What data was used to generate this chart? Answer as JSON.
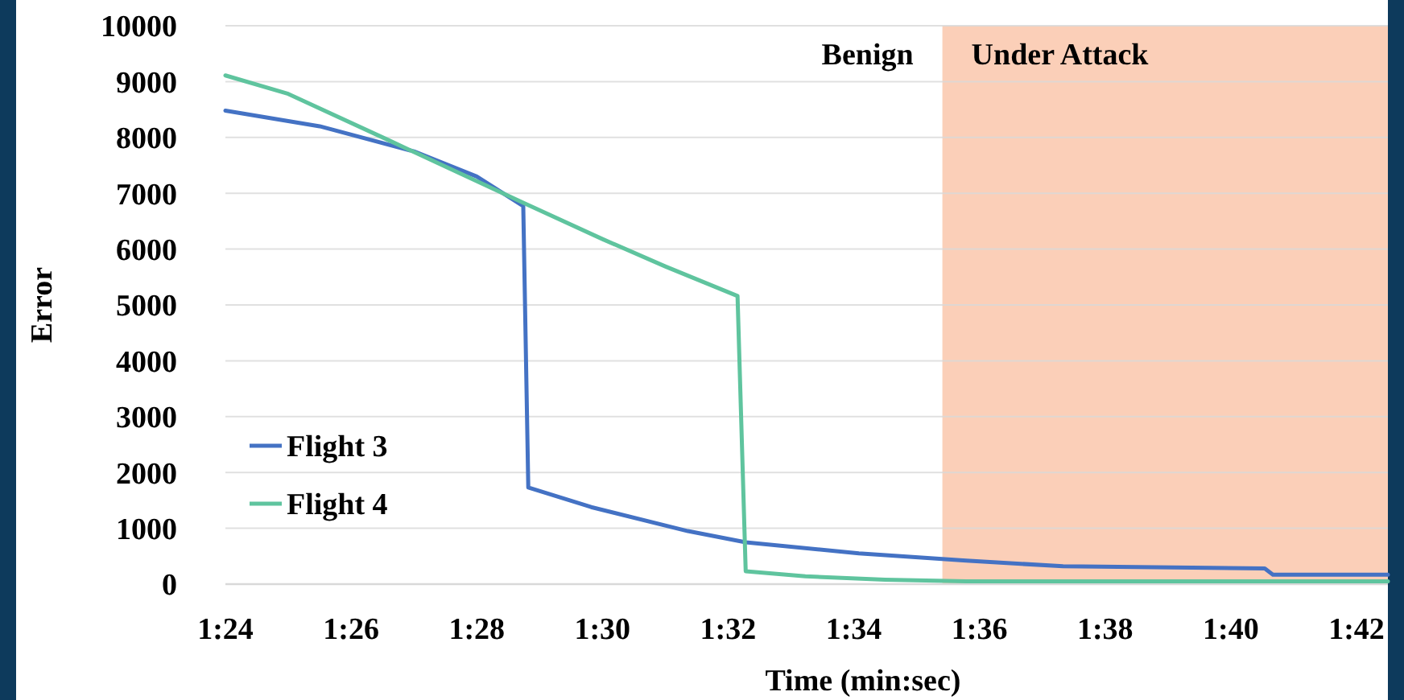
{
  "chart_data": {
    "type": "line",
    "xlabel": "Time (min:sec)",
    "ylabel": "Error",
    "xlim": [
      84,
      102.5
    ],
    "xticks": [
      {
        "value": 84,
        "label": "1:24"
      },
      {
        "value": 86,
        "label": "1:26"
      },
      {
        "value": 88,
        "label": "1:28"
      },
      {
        "value": 90,
        "label": "1:30"
      },
      {
        "value": 92,
        "label": "1:32"
      },
      {
        "value": 94,
        "label": "1:34"
      },
      {
        "value": 96,
        "label": "1:36"
      },
      {
        "value": 98,
        "label": "1:38"
      },
      {
        "value": 100,
        "label": "1:40"
      },
      {
        "value": 102,
        "label": "1:42"
      }
    ],
    "ylim": [
      0,
      10000
    ],
    "yticks": [
      0,
      1000,
      2000,
      3000,
      4000,
      5000,
      6000,
      7000,
      8000,
      9000,
      10000
    ],
    "grid": "y",
    "legend": "bottom left",
    "annotations": [
      "Benign"
    ],
    "series": [
      {
        "name": "Flight 3",
        "color": "#4472c4",
        "x": [
          84,
          85.5,
          87,
          88,
          88.74,
          88.82,
          89.82,
          91.36,
          92.28,
          94.08,
          95.79,
          97.33,
          100.54,
          100.67,
          102.5
        ],
        "values": [
          8480,
          8200,
          7750,
          7300,
          6770,
          1730,
          1380,
          950,
          750,
          550,
          420,
          320,
          280,
          170,
          170
        ]
      },
      {
        "name": "Flight 4",
        "color": "#5fc49e",
        "x": [
          84,
          85,
          86.56,
          88.74,
          90,
          91,
          92.15,
          92.28,
          93.23,
          94.5,
          95.79,
          102.5
        ],
        "values": [
          9110,
          8780,
          7970,
          6830,
          6180,
          5690,
          5160,
          230,
          140,
          80,
          50,
          50
        ]
      }
    ],
    "bands": [
      {
        "axis": "x",
        "from": 95.41,
        "to": 102.5,
        "label": "Under Attack",
        "color": "#fbcfb8"
      }
    ]
  }
}
